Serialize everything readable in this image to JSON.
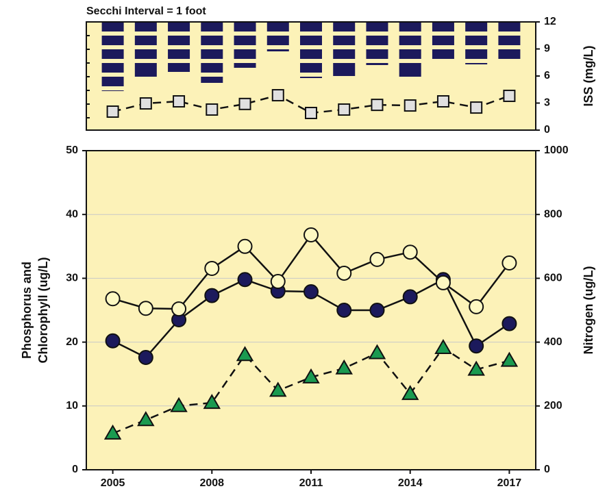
{
  "chart_data": [
    {
      "type": "line",
      "title": "Secchi Interval = 1 foot",
      "y2label": "ISS (mg/L)",
      "x": [
        2005,
        2006,
        2007,
        2008,
        2009,
        2010,
        2011,
        2012,
        2013,
        2014,
        2015,
        2016,
        2017
      ],
      "xlim": [
        2004.2,
        2017.8
      ],
      "y2lim": [
        0,
        12
      ],
      "y2ticks": [
        0,
        3,
        6,
        9,
        12
      ],
      "secchi": {
        "color": "#1c1a5c",
        "interval": 1,
        "ylim": [
          0,
          7.9
        ],
        "yticks": [
          0,
          1,
          2,
          3,
          4,
          5,
          6,
          7
        ],
        "values": [
          5.05,
          4.0,
          3.65,
          4.45,
          3.35,
          2.15,
          4.1,
          3.95,
          3.15,
          4.0,
          2.7,
          3.1,
          2.7
        ]
      },
      "series": [
        {
          "color": "#e0e0e0",
          "marker": "square",
          "dash": true,
          "axis": "y2",
          "values": [
            2.05,
            2.96,
            3.19,
            2.28,
            2.9,
            3.87,
            1.9,
            2.28,
            2.8,
            2.73,
            3.19,
            2.5,
            3.8
          ]
        }
      ]
    },
    {
      "type": "line",
      "ylabel": [
        "Phosphorus and",
        "Chlorophyll (ug/L)"
      ],
      "y2label": "Nitrogen (ug/L)",
      "x": [
        2005,
        2006,
        2007,
        2008,
        2009,
        2010,
        2011,
        2012,
        2013,
        2014,
        2015,
        2016,
        2017
      ],
      "xlim": [
        2004.2,
        2017.8
      ],
      "xticks": [
        2005,
        2008,
        2011,
        2014,
        2017
      ],
      "ylim": [
        0,
        50
      ],
      "yticks": [
        0,
        10,
        20,
        30,
        40,
        50
      ],
      "y2lim": [
        0,
        1000
      ],
      "y2ticks": [
        0,
        200,
        400,
        600,
        800,
        1000
      ],
      "grid": true,
      "series": [
        {
          "color": "#1a9a50",
          "marker": "triangle",
          "dash": true,
          "axis": "y",
          "values": [
            5.7,
            7.8,
            10.0,
            10.5,
            18.0,
            12.4,
            14.5,
            15.9,
            18.3,
            11.9,
            19.1,
            15.7,
            17.1
          ]
        },
        {
          "color": "#1c1a5c",
          "marker": "circle",
          "dash": false,
          "axis": "y",
          "values": [
            20.2,
            17.6,
            23.5,
            27.3,
            29.8,
            28.0,
            27.9,
            25.0,
            25.0,
            27.1,
            29.8,
            19.4,
            22.9
          ]
        },
        {
          "color": "#fdf8c2",
          "marker": "circle",
          "dash": false,
          "axis": "y2",
          "values": [
            536,
            506,
            504,
            631,
            700,
            590,
            736,
            616,
            659,
            682,
            586,
            511,
            648
          ]
        }
      ]
    }
  ]
}
